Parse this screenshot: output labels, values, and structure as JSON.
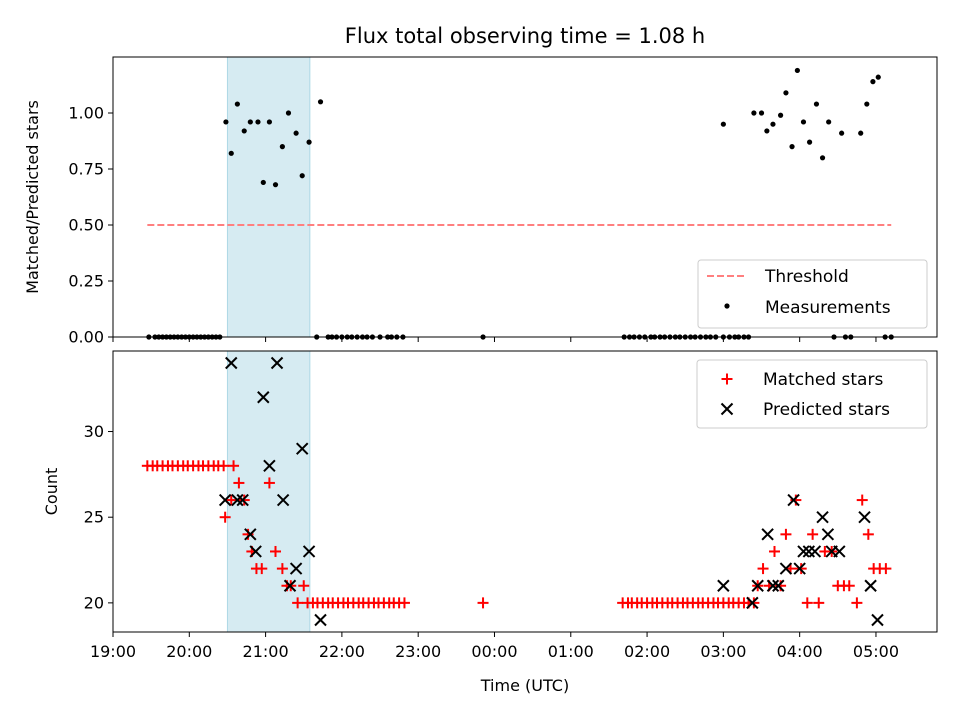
{
  "title": "Flux total observing time = 1.08 h",
  "colors": {
    "threshold": "#ff7f7f",
    "measurement": "#000000",
    "matched": "#ff0000",
    "predicted": "#000000",
    "window": "#add8e6"
  },
  "chart_data": [
    {
      "type": "scatter",
      "ylabel": "Matched/Predicted stars",
      "xlabel": "",
      "xlim": [
        19.0,
        29.8
      ],
      "ylim": [
        0.0,
        1.25
      ],
      "y_ticks": [
        0.0,
        0.25,
        0.5,
        0.75,
        1.0
      ],
      "y_tick_labels": [
        "0.00",
        "0.25",
        "0.50",
        "0.75",
        "1.00"
      ],
      "highlight_span": [
        20.5,
        21.58
      ],
      "legend": {
        "position": "lower-right",
        "entries": [
          "Threshold",
          "Measurements"
        ]
      },
      "threshold": {
        "name": "Threshold",
        "x": [
          19.45,
          29.2
        ],
        "y": 0.5,
        "style": "dashed"
      },
      "series": [
        {
          "name": "Measurements",
          "marker": "dot",
          "points": [
            [
              19.47,
              0
            ],
            [
              19.55,
              0
            ],
            [
              19.6,
              0
            ],
            [
              19.65,
              0
            ],
            [
              19.7,
              0
            ],
            [
              19.75,
              0
            ],
            [
              19.8,
              0
            ],
            [
              19.85,
              0
            ],
            [
              19.9,
              0
            ],
            [
              19.95,
              0
            ],
            [
              20.0,
              0
            ],
            [
              20.05,
              0
            ],
            [
              20.1,
              0
            ],
            [
              20.15,
              0
            ],
            [
              20.2,
              0
            ],
            [
              20.25,
              0
            ],
            [
              20.3,
              0
            ],
            [
              20.35,
              0
            ],
            [
              20.4,
              0
            ],
            [
              20.48,
              0.96
            ],
            [
              20.55,
              0.82
            ],
            [
              20.63,
              1.04
            ],
            [
              20.72,
              0.92
            ],
            [
              20.8,
              0.96
            ],
            [
              20.9,
              0.96
            ],
            [
              20.97,
              0.69
            ],
            [
              21.05,
              0.96
            ],
            [
              21.13,
              0.68
            ],
            [
              21.22,
              0.85
            ],
            [
              21.3,
              1.0
            ],
            [
              21.4,
              0.91
            ],
            [
              21.48,
              0.72
            ],
            [
              21.57,
              0.87
            ],
            [
              21.72,
              1.05
            ],
            [
              21.67,
              0
            ],
            [
              21.82,
              0
            ],
            [
              21.87,
              0
            ],
            [
              21.93,
              0
            ],
            [
              22.0,
              0
            ],
            [
              22.07,
              0
            ],
            [
              22.13,
              0
            ],
            [
              22.2,
              0
            ],
            [
              22.27,
              0
            ],
            [
              22.33,
              0
            ],
            [
              22.4,
              0
            ],
            [
              22.5,
              0
            ],
            [
              22.6,
              0
            ],
            [
              22.65,
              0
            ],
            [
              22.72,
              0
            ],
            [
              22.8,
              0
            ],
            [
              23.85,
              0
            ],
            [
              25.7,
              0
            ],
            [
              25.77,
              0
            ],
            [
              25.83,
              0
            ],
            [
              25.9,
              0
            ],
            [
              25.97,
              0
            ],
            [
              26.05,
              0
            ],
            [
              26.1,
              0
            ],
            [
              26.17,
              0
            ],
            [
              26.23,
              0
            ],
            [
              26.3,
              0
            ],
            [
              26.37,
              0
            ],
            [
              26.43,
              0
            ],
            [
              26.5,
              0
            ],
            [
              26.57,
              0
            ],
            [
              26.63,
              0
            ],
            [
              26.7,
              0
            ],
            [
              26.77,
              0
            ],
            [
              26.83,
              0
            ],
            [
              26.9,
              0
            ],
            [
              27.0,
              0
            ],
            [
              27.08,
              0
            ],
            [
              27.15,
              0
            ],
            [
              27.2,
              0
            ],
            [
              27.27,
              0
            ],
            [
              27.33,
              0
            ],
            [
              27.0,
              0.95
            ],
            [
              27.4,
              1.0
            ],
            [
              27.5,
              1.0
            ],
            [
              27.57,
              0.92
            ],
            [
              27.65,
              0.95
            ],
            [
              27.75,
              0.99
            ],
            [
              27.82,
              1.09
            ],
            [
              27.9,
              0.85
            ],
            [
              27.97,
              1.19
            ],
            [
              28.05,
              0.96
            ],
            [
              28.13,
              0.87
            ],
            [
              28.22,
              1.04
            ],
            [
              28.3,
              0.8
            ],
            [
              28.38,
              0.96
            ],
            [
              28.55,
              0.91
            ],
            [
              28.8,
              0.91
            ],
            [
              28.88,
              1.04
            ],
            [
              28.96,
              1.14
            ],
            [
              29.03,
              1.16
            ],
            [
              28.45,
              0
            ],
            [
              28.6,
              0
            ],
            [
              28.67,
              0
            ],
            [
              29.12,
              0
            ],
            [
              29.2,
              0
            ]
          ]
        }
      ]
    },
    {
      "type": "scatter",
      "ylabel": "Count",
      "xlabel": "Time (UTC)",
      "xlim": [
        19.0,
        29.8
      ],
      "ylim": [
        18.3,
        34.7
      ],
      "y_ticks": [
        20,
        25,
        30
      ],
      "y_tick_labels": [
        "20",
        "25",
        "30"
      ],
      "x_ticks": [
        19,
        20,
        21,
        22,
        23,
        24,
        25,
        26,
        27,
        28,
        29
      ],
      "x_tick_labels": [
        "19:00",
        "20:00",
        "21:00",
        "22:00",
        "23:00",
        "00:00",
        "01:00",
        "02:00",
        "03:00",
        "04:00",
        "05:00"
      ],
      "highlight_span": [
        20.5,
        21.58
      ],
      "legend": {
        "position": "upper-right",
        "entries": [
          "Matched stars",
          "Predicted stars"
        ]
      },
      "series": [
        {
          "name": "Matched stars",
          "marker": "plus",
          "points": [
            [
              19.45,
              28
            ],
            [
              19.52,
              28
            ],
            [
              19.58,
              28
            ],
            [
              19.65,
              28
            ],
            [
              19.72,
              28
            ],
            [
              19.78,
              28
            ],
            [
              19.85,
              28
            ],
            [
              19.92,
              28
            ],
            [
              19.98,
              28
            ],
            [
              20.05,
              28
            ],
            [
              20.12,
              28
            ],
            [
              20.18,
              28
            ],
            [
              20.25,
              28
            ],
            [
              20.32,
              28
            ],
            [
              20.38,
              28
            ],
            [
              20.45,
              28
            ],
            [
              20.58,
              28
            ],
            [
              20.47,
              25
            ],
            [
              20.55,
              26
            ],
            [
              20.65,
              27
            ],
            [
              20.72,
              26
            ],
            [
              20.77,
              24
            ],
            [
              20.82,
              23
            ],
            [
              20.88,
              22
            ],
            [
              20.95,
              22
            ],
            [
              21.05,
              27
            ],
            [
              21.13,
              23
            ],
            [
              21.22,
              22
            ],
            [
              21.28,
              21
            ],
            [
              21.33,
              21
            ],
            [
              21.42,
              20
            ],
            [
              21.5,
              21
            ],
            [
              21.55,
              20
            ],
            [
              21.62,
              20
            ],
            [
              21.68,
              20
            ],
            [
              21.75,
              20
            ],
            [
              21.82,
              20
            ],
            [
              21.88,
              20
            ],
            [
              21.95,
              20
            ],
            [
              22.02,
              20
            ],
            [
              22.08,
              20
            ],
            [
              22.15,
              20
            ],
            [
              22.22,
              20
            ],
            [
              22.28,
              20
            ],
            [
              22.35,
              20
            ],
            [
              22.42,
              20
            ],
            [
              22.48,
              20
            ],
            [
              22.55,
              20
            ],
            [
              22.62,
              20
            ],
            [
              22.68,
              20
            ],
            [
              22.75,
              20
            ],
            [
              22.82,
              20
            ],
            [
              23.85,
              20
            ],
            [
              25.68,
              20
            ],
            [
              25.75,
              20
            ],
            [
              25.8,
              20
            ],
            [
              25.87,
              20
            ],
            [
              25.93,
              20
            ],
            [
              26.0,
              20
            ],
            [
              26.07,
              20
            ],
            [
              26.13,
              20
            ],
            [
              26.2,
              20
            ],
            [
              26.27,
              20
            ],
            [
              26.33,
              20
            ],
            [
              26.4,
              20
            ],
            [
              26.47,
              20
            ],
            [
              26.53,
              20
            ],
            [
              26.6,
              20
            ],
            [
              26.67,
              20
            ],
            [
              26.73,
              20
            ],
            [
              26.8,
              20
            ],
            [
              26.87,
              20
            ],
            [
              26.93,
              20
            ],
            [
              27.0,
              20
            ],
            [
              27.07,
              20
            ],
            [
              27.13,
              20
            ],
            [
              27.2,
              20
            ],
            [
              27.27,
              20
            ],
            [
              27.33,
              20
            ],
            [
              27.4,
              20
            ],
            [
              27.45,
              21
            ],
            [
              27.52,
              22
            ],
            [
              27.6,
              21
            ],
            [
              27.67,
              23
            ],
            [
              27.75,
              21
            ],
            [
              27.82,
              24
            ],
            [
              27.88,
              22
            ],
            [
              27.95,
              26
            ],
            [
              28.02,
              22
            ],
            [
              28.1,
              20
            ],
            [
              28.17,
              24
            ],
            [
              28.25,
              20
            ],
            [
              28.33,
              23
            ],
            [
              28.42,
              23
            ],
            [
              28.5,
              21
            ],
            [
              28.58,
              21
            ],
            [
              28.65,
              21
            ],
            [
              28.75,
              20
            ],
            [
              28.82,
              26
            ],
            [
              28.9,
              24
            ],
            [
              28.97,
              22
            ],
            [
              29.05,
              22
            ],
            [
              29.13,
              22
            ]
          ]
        },
        {
          "name": "Predicted stars",
          "marker": "x",
          "points": [
            [
              20.47,
              26
            ],
            [
              20.55,
              34
            ],
            [
              20.63,
              26
            ],
            [
              20.7,
              26
            ],
            [
              20.8,
              24
            ],
            [
              20.87,
              23
            ],
            [
              20.97,
              32
            ],
            [
              21.05,
              28
            ],
            [
              21.15,
              34
            ],
            [
              21.23,
              26
            ],
            [
              21.32,
              21
            ],
            [
              21.4,
              22
            ],
            [
              21.48,
              29
            ],
            [
              21.57,
              23
            ],
            [
              21.72,
              19
            ],
            [
              27.0,
              21
            ],
            [
              27.38,
              20
            ],
            [
              27.45,
              21
            ],
            [
              27.58,
              24
            ],
            [
              27.65,
              21
            ],
            [
              27.72,
              21
            ],
            [
              27.82,
              22
            ],
            [
              27.92,
              26
            ],
            [
              28.0,
              22
            ],
            [
              28.05,
              23
            ],
            [
              28.12,
              23
            ],
            [
              28.2,
              23
            ],
            [
              28.3,
              25
            ],
            [
              28.37,
              24
            ],
            [
              28.42,
              23
            ],
            [
              28.52,
              23
            ],
            [
              28.85,
              25
            ],
            [
              28.93,
              21
            ],
            [
              29.02,
              19
            ]
          ]
        }
      ]
    }
  ]
}
